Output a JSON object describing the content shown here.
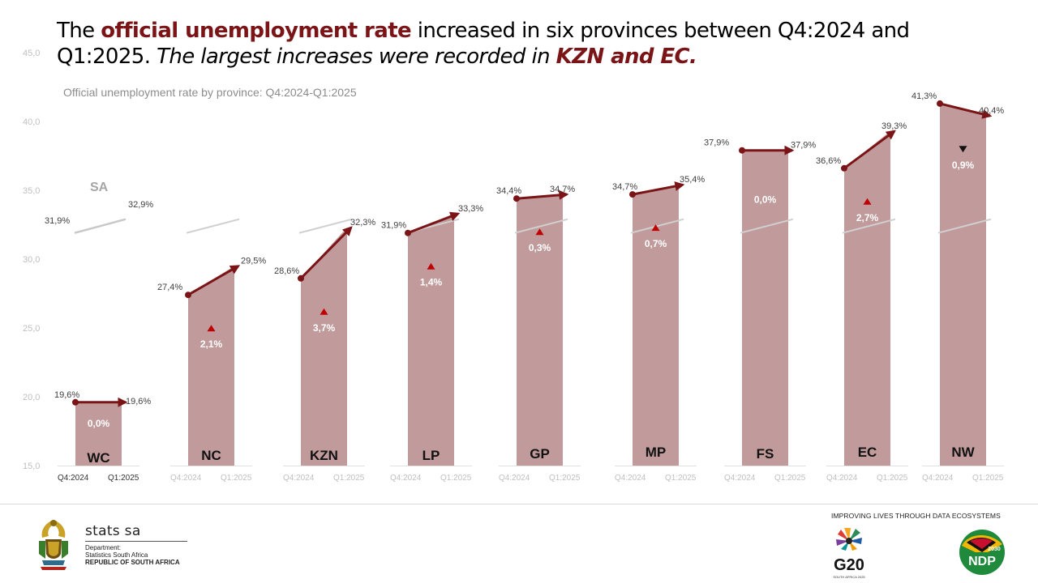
{
  "headline": {
    "part1": "The ",
    "highlight": "official unemployment rate",
    "part2": " increased in six provinces between Q4:2024 and Q1:2025. ",
    "italic": "The largest increases were recorded in ",
    "italic_highlight": "KZN and EC."
  },
  "footer": {
    "stats_name": "stats sa",
    "dept_line1": "Department:",
    "dept_line2": "Statistics South Africa",
    "dept_line3": "REPUBLIC OF SOUTH AFRICA",
    "tagline": "IMPROVING LIVES THROUGH DATA ECOSYSTEMS",
    "g20_text": "G20",
    "g20_sub": "SOUTH AFRICA 2025",
    "ndp_text": "NDP",
    "ndp_year": "2030"
  },
  "colors": {
    "bar_fill": "#c19b9c",
    "dark_red": "#7b1416",
    "sa_line": "#d0d0d0",
    "grid_text": "#bfbfbf"
  },
  "chart_data": {
    "type": "bar",
    "title": "Official unemployment rate by province: Q4:2024-Q1:2025",
    "ylim": [
      15,
      45
    ],
    "yticks": [
      "15,0",
      "20,0",
      "25,0",
      "30,0",
      "35,0",
      "40,0",
      "45,0"
    ],
    "period_labels": [
      "Q4:2024",
      "Q1:2025"
    ],
    "sa_benchmark": {
      "name": "SA",
      "q4_2024": 31.9,
      "q1_2025": 32.9,
      "q4_label": "31,9%",
      "q1_label": "32,9%"
    },
    "provinces": [
      {
        "name": "WC",
        "q4_2024": 19.6,
        "q1_2025": 19.6,
        "q4_label": "19,6%",
        "q1_label": "19,6%",
        "change": "0,0%",
        "direction": "none"
      },
      {
        "name": "NC",
        "q4_2024": 27.4,
        "q1_2025": 29.5,
        "q4_label": "27,4%",
        "q1_label": "29,5%",
        "change": "2,1%",
        "direction": "up"
      },
      {
        "name": "KZN",
        "q4_2024": 28.6,
        "q1_2025": 32.3,
        "q4_label": "28,6%",
        "q1_label": "32,3%",
        "change": "3,7%",
        "direction": "up"
      },
      {
        "name": "LP",
        "q4_2024": 31.9,
        "q1_2025": 33.3,
        "q4_label": "31,9%",
        "q1_label": "33,3%",
        "change": "1,4%",
        "direction": "up"
      },
      {
        "name": "GP",
        "q4_2024": 34.4,
        "q1_2025": 34.7,
        "q4_label": "34,4%",
        "q1_label": "34,7%",
        "change": "0,3%",
        "direction": "up"
      },
      {
        "name": "MP",
        "q4_2024": 34.7,
        "q1_2025": 35.4,
        "q4_label": "34,7%",
        "q1_label": "35,4%",
        "change": "0,7%",
        "direction": "up"
      },
      {
        "name": "FS",
        "q4_2024": 37.9,
        "q1_2025": 37.9,
        "q4_label": "37,9%",
        "q1_label": "37,9%",
        "change": "0,0%",
        "direction": "none"
      },
      {
        "name": "EC",
        "q4_2024": 36.6,
        "q1_2025": 39.3,
        "q4_label": "36,6%",
        "q1_label": "39,3%",
        "change": "2,7%",
        "direction": "up"
      },
      {
        "name": "NW",
        "q4_2024": 41.3,
        "q1_2025": 40.4,
        "q4_label": "41,3%",
        "q1_label": "40,4%",
        "change": "0,9%",
        "direction": "down"
      }
    ]
  }
}
